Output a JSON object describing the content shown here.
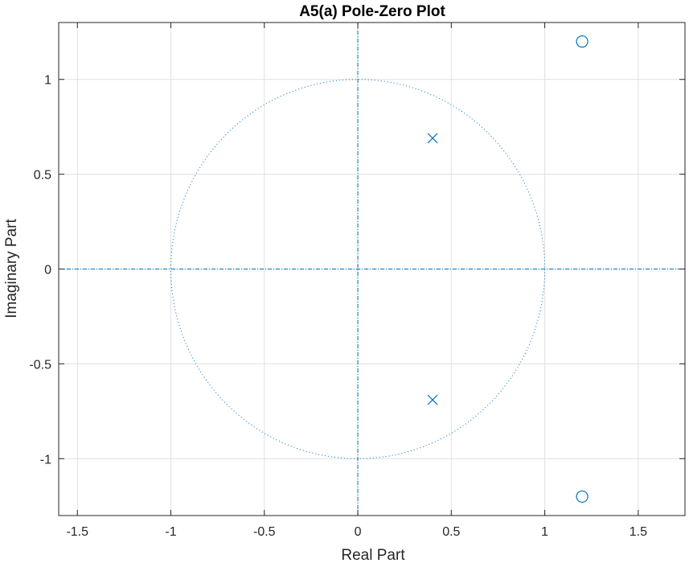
{
  "chart_data": {
    "type": "scatter",
    "title": "A5(a) Pole-Zero Plot",
    "xlabel": "Real Part",
    "ylabel": "Imaginary Part",
    "xlim": [
      -1.6,
      1.75
    ],
    "ylim": [
      -1.3,
      1.3
    ],
    "xticks": [
      "-1.5",
      "-1",
      "-0.5",
      "0",
      "0.5",
      "1",
      "1.5"
    ],
    "xtick_values": [
      -1.5,
      -1,
      -0.5,
      0,
      0.5,
      1,
      1.5
    ],
    "yticks": [
      "-1",
      "-0.5",
      "0",
      "0.5",
      "1"
    ],
    "ytick_values": [
      -1,
      -0.5,
      0,
      0.5,
      1
    ],
    "grid": true,
    "unit_circle": true,
    "series": [
      {
        "marker": "x",
        "points": [
          [
            0.4,
            0.69
          ],
          [
            0.4,
            -0.69
          ]
        ]
      },
      {
        "marker": "o",
        "points": [
          [
            1.2,
            1.2
          ],
          [
            1.2,
            -1.2
          ]
        ]
      }
    ],
    "colors": {
      "marker": "#0072bd",
      "grid": "#e0e0e0",
      "axis": "#262626"
    }
  }
}
